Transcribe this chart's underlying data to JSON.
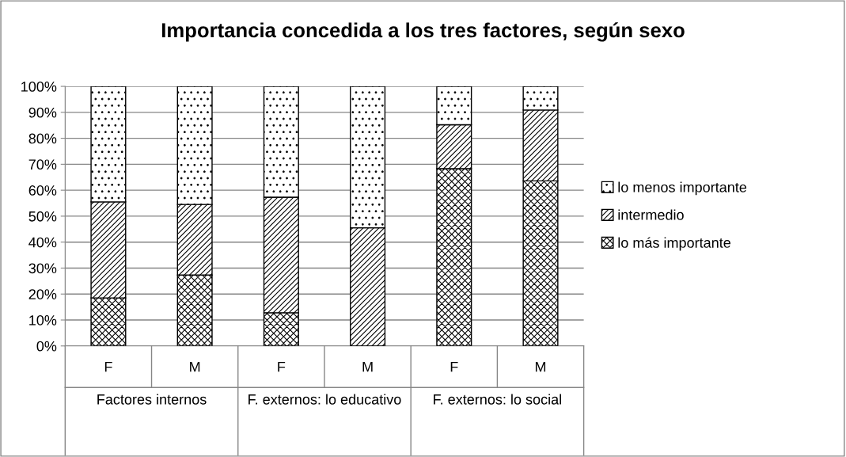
{
  "chart_data": {
    "type": "bar",
    "stacked": true,
    "title": "Importancia concedida a los tres factores, según sexo",
    "categories": [
      "F",
      "M",
      "F",
      "M",
      "F",
      "M"
    ],
    "annotations": [
      "Factores internos",
      "F. externos: lo educativo",
      "F. externos: lo social"
    ],
    "series": [
      {
        "name": "lo más importante",
        "color": "#000000",
        "values": [
          18.5,
          27.3,
          12.8,
          0,
          68.3,
          63.6
        ]
      },
      {
        "name": "intermedio",
        "color": "#000000",
        "values": [
          37,
          27.2,
          44.5,
          45.5,
          16.9,
          27.3
        ]
      },
      {
        "name": "lo menos importante",
        "color": "#000000",
        "values": [
          44.5,
          45.5,
          42.7,
          54.5,
          14.8,
          9.1
        ]
      }
    ],
    "ylim": [
      0,
      100
    ],
    "yticks": [
      {
        "value": 0,
        "label": "0%"
      },
      {
        "value": 10,
        "label": "10%"
      },
      {
        "value": 20,
        "label": "20%"
      },
      {
        "value": 30,
        "label": "30%"
      },
      {
        "value": 40,
        "label": "40%"
      },
      {
        "value": 50,
        "label": "50%"
      },
      {
        "value": 60,
        "label": "60%"
      },
      {
        "value": 70,
        "label": "70%"
      },
      {
        "value": 80,
        "label": "80%"
      },
      {
        "value": 90,
        "label": "90%"
      },
      {
        "value": 100,
        "label": "100%"
      }
    ],
    "grid": "y",
    "legend": "right"
  }
}
